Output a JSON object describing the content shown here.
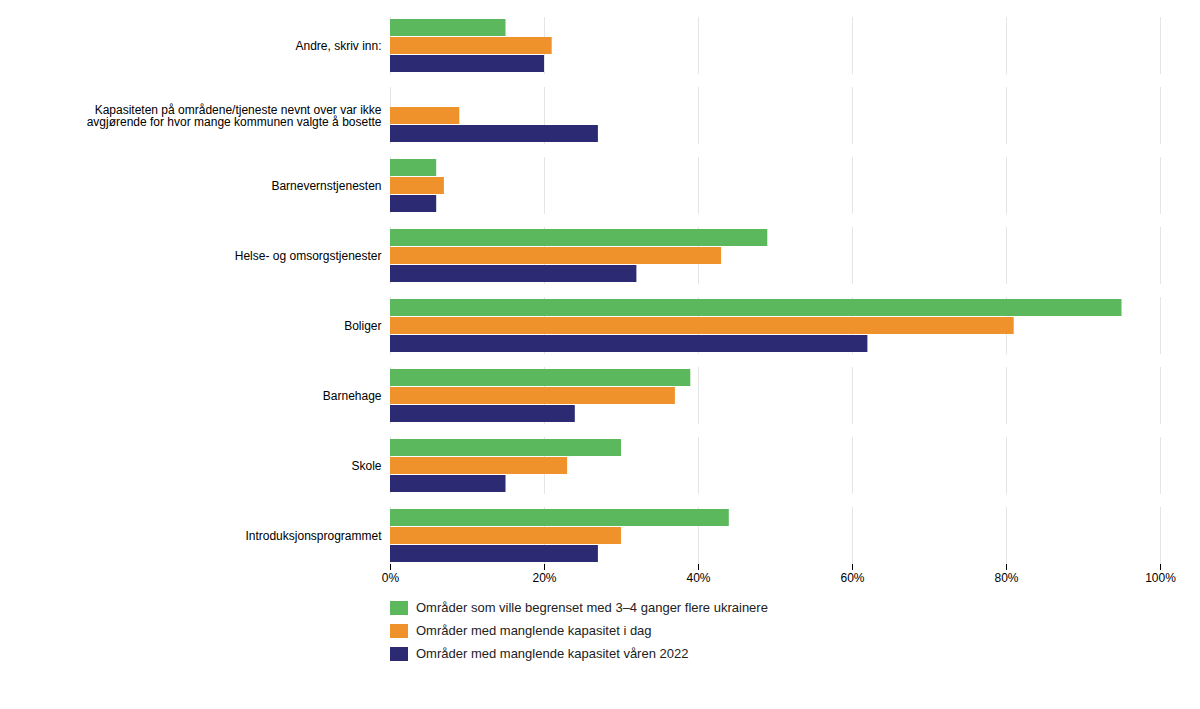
{
  "chart_data": {
    "type": "bar",
    "orientation": "horizontal",
    "categories": [
      "Introduksjonsprogrammet",
      "Skole",
      "Barnehage",
      "Boliger",
      "Helse- og omsorgstjenester",
      "Barnevernstjenesten",
      "Kapasiteten på områdene/tjeneste nevnt over var ikke\navgjørende for hvor mange kommunen valgte å bosette",
      "Andre, skriv inn:"
    ],
    "series": [
      {
        "name": "Områder som ville begrenset med 3–4 ganger flere ukrainere",
        "color": "#5CB85C",
        "values": [
          44,
          30,
          39,
          95,
          49,
          6,
          0,
          15
        ]
      },
      {
        "name": "Områder med manglende kapasitet i dag",
        "color": "#F0922B",
        "values": [
          30,
          23,
          37,
          81,
          43,
          7,
          9,
          21
        ]
      },
      {
        "name": "Områder med manglende kapasitet våren 2022",
        "color": "#2B2A72",
        "values": [
          27,
          15,
          24,
          62,
          32,
          6,
          27,
          20
        ]
      }
    ],
    "xlim": [
      0,
      100
    ],
    "xticks": [
      {
        "value": 0,
        "label": "0%"
      },
      {
        "value": 20,
        "label": "20%"
      },
      {
        "value": 40,
        "label": "40%"
      },
      {
        "value": 60,
        "label": "60%"
      },
      {
        "value": 80,
        "label": "80%"
      },
      {
        "value": 100,
        "label": "100%"
      }
    ],
    "grid": true,
    "legend": "bottom"
  }
}
